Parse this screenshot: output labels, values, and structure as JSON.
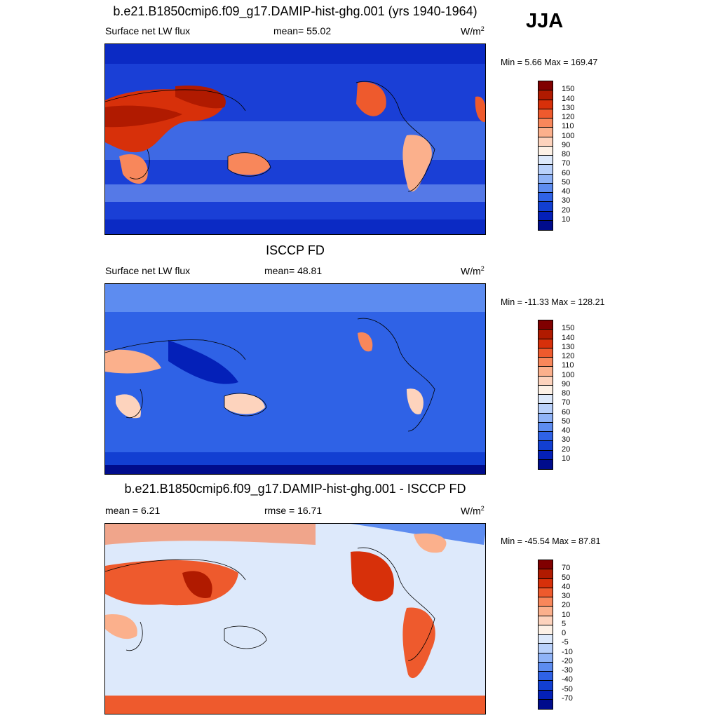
{
  "season": "JJA",
  "panels": [
    {
      "title": "b.e21.B1850cmip6.f09_g17.DAMIP-hist-ghg.001 (yrs 1940-1964)",
      "left": "Surface net LW flux",
      "center": "mean=  55.02",
      "units_base": "W/m",
      "units_exp": "2",
      "minmax": "Min =   5.66 Max = 169.47",
      "colorbar_labels": [
        "150",
        "140",
        "130",
        "120",
        "110",
        "100",
        "90",
        "80",
        "70",
        "60",
        "50",
        "40",
        "30",
        "20",
        "10"
      ]
    },
    {
      "title": "ISCCP FD",
      "left": "Surface net LW flux",
      "center": "mean=  48.81",
      "units_base": "W/m",
      "units_exp": "2",
      "minmax": "Min = -11.33 Max = 128.21",
      "colorbar_labels": [
        "150",
        "140",
        "130",
        "120",
        "110",
        "100",
        "90",
        "80",
        "70",
        "60",
        "50",
        "40",
        "30",
        "20",
        "10"
      ]
    },
    {
      "title": "b.e21.B1850cmip6.f09_g17.DAMIP-hist-ghg.001 - ISCCP FD",
      "left": "mean =   6.21",
      "center": "rmse =  16.71",
      "units_base": "W/m",
      "units_exp": "2",
      "minmax": "Min = -45.54 Max =  87.81",
      "colorbar_labels": [
        "70",
        "50",
        "40",
        "30",
        "20",
        "10",
        "5",
        "0",
        "-5",
        "-10",
        "-20",
        "-30",
        "-40",
        "-50",
        "-70"
      ]
    }
  ],
  "colors": {
    "abs_scale": [
      "#800000",
      "#b01a00",
      "#d7300a",
      "#ee5a2d",
      "#f8875b",
      "#fbb08c",
      "#fdd3bd",
      "#fdf1e6",
      "#dde9fb",
      "#b9d1fb",
      "#8fb3f7",
      "#5d8cf0",
      "#2f62e6",
      "#123fd2",
      "#0420b8",
      "#000c8c"
    ],
    "diff_scale": [
      "#800000",
      "#b01a00",
      "#d7300a",
      "#ee5a2d",
      "#f8875b",
      "#fbb08c",
      "#fdd3bd",
      "#fdf1e6",
      "#dde9fb",
      "#b9d1fb",
      "#8fb3f7",
      "#5d8cf0",
      "#2f62e6",
      "#123fd2",
      "#0420b8",
      "#000c8c"
    ]
  }
}
